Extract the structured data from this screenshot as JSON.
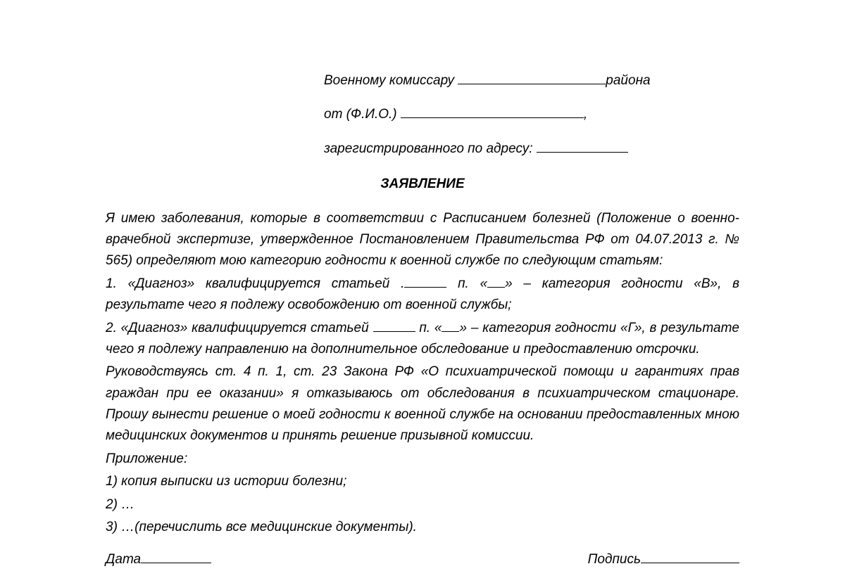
{
  "header": {
    "line1_before": "Военному комиссару ",
    "line1_after": "района",
    "line1_blank_width": 210,
    "line2_before": "от (Ф.И.О.) ",
    "line2_after": ",",
    "line2_blank_width": 260,
    "line3_before": "зарегистрированного по адресу: ",
    "line3_blank_width": 130
  },
  "title": "ЗАЯВЛЕНИЕ",
  "body": {
    "intro": "Я имею заболевания, которые в соответствии с Расписанием болезней (Положение о военно-врачебной экспертизе, утвержденное Постановлением Правительства РФ от 04.07.2013 г. № 565) определяют мою категорию годности к военной службе по следующим статьям:",
    "item1_a": "1. «Диагноз» квалифицируется статьей .",
    "item1_b": " п. «",
    "item1_c": "» – категория годности «В», в результате чего я подлежу освобождению от военной службы;",
    "item1_blank1_width": 60,
    "item1_blank2_width": 25,
    "item2_a": "2. «Диагноз» квалифицируется статьей ",
    "item2_b": " п. «",
    "item2_c": "» – категория годности «Г», в результате чего я подлежу направлению на дополнительное обследование и предоставлению отсрочки.",
    "item2_blank1_width": 60,
    "item2_blank2_width": 25,
    "legal": "Руководствуясь ст. 4 п. 1, ст. 23 Закона РФ «О психиатрической помощи и гарантиях прав граждан при ее оказании» я отказываюсь от обследования в психиатрическом стационаре. Прошу вынести решение о моей годности к военной службе на основании предоставленных мною медицинских документов и принять решение призывной комиссии.",
    "attach_title": "Приложение:",
    "attach1": "1) копия выписки из истории болезни;",
    "attach2": "2) …",
    "attach3": "3) …(перечислить все медицинские документы)."
  },
  "footer": {
    "date_label": "Дата",
    "date_blank_width": 100,
    "sign_label": "Подпись",
    "sign_blank_width": 140
  },
  "style": {
    "text_color": "#000000",
    "background_color": "#ffffff",
    "font_size_pt": 14,
    "font_style": "italic",
    "font_family": "Arial"
  }
}
